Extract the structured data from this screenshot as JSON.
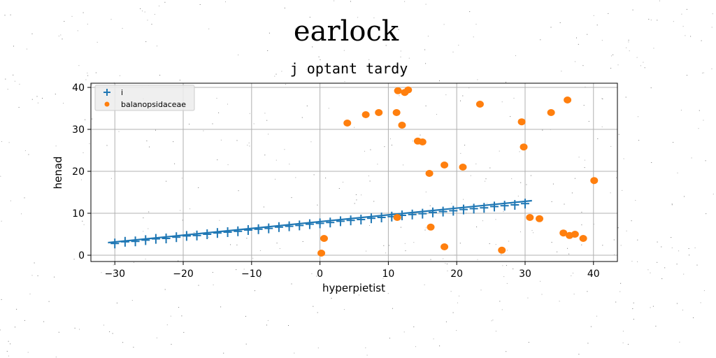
{
  "title": "earlock",
  "subtitle": "j optant tardy",
  "chart_data": {
    "type": "scatter",
    "xlabel": "hyperpietist",
    "ylabel": "henad",
    "xlim": [
      -33.5,
      43.5
    ],
    "ylim": [
      -1.5,
      41
    ],
    "xticks": [
      -30,
      -20,
      -10,
      0,
      10,
      20,
      30,
      40
    ],
    "yticks": [
      0,
      10,
      20,
      30,
      40
    ],
    "xtick_labels": [
      "−30",
      "−20",
      "−10",
      "0",
      "10",
      "20",
      "30",
      "40"
    ],
    "ytick_labels": [
      "0",
      "10",
      "20",
      "30",
      "40"
    ],
    "grid": true,
    "legend_position": "upper-left",
    "series": [
      {
        "name": "i",
        "marker": "plus",
        "color": "#1f77b4",
        "line": {
          "x": [
            -31,
            31
          ],
          "y": [
            3.0,
            13.0
          ]
        },
        "x": [
          -30,
          -28.5,
          -27,
          -25.5,
          -24,
          -22.5,
          -21,
          -19.5,
          -18,
          -16.5,
          -15,
          -13.5,
          -12,
          -10.5,
          -9,
          -7.5,
          -6,
          -4.5,
          -3,
          -1.5,
          0,
          1.5,
          3,
          4.5,
          6,
          7.5,
          9,
          10.5,
          12,
          13.5,
          15,
          16.5,
          18,
          19.5,
          21,
          22.5,
          24,
          25.5,
          27,
          28.5,
          30
        ],
        "y": [
          2.8,
          3.2,
          3.3,
          3.6,
          3.9,
          4.0,
          4.3,
          4.6,
          4.7,
          5.0,
          5.3,
          5.5,
          5.7,
          6.0,
          6.2,
          6.4,
          6.7,
          6.9,
          7.1,
          7.4,
          7.6,
          7.8,
          8.1,
          8.3,
          8.5,
          8.8,
          9.0,
          9.2,
          9.5,
          9.7,
          9.9,
          10.2,
          10.4,
          10.6,
          10.9,
          11.1,
          11.3,
          11.6,
          11.8,
          12.0,
          12.3
        ]
      },
      {
        "name": "balanopsidaceae",
        "marker": "circle",
        "color": "#ff7f0e",
        "x": [
          0.2,
          0.6,
          4,
          6.7,
          8.6,
          11.2,
          11.4,
          12,
          12.4,
          12.9,
          11.3,
          14.3,
          15,
          16,
          16.2,
          18.2,
          18.2,
          20.9,
          23.4,
          26.6,
          29.5,
          29.8,
          30.7,
          32.1,
          33.8,
          35.6,
          36.2,
          36.5,
          37.3,
          38.5,
          40.1
        ],
        "y": [
          0.5,
          4,
          31.5,
          33.5,
          34,
          34,
          39.2,
          31,
          38.8,
          39.4,
          9,
          27.2,
          27,
          19.5,
          6.7,
          2,
          21.5,
          21,
          36,
          1.2,
          31.8,
          25.8,
          9,
          8.7,
          34,
          5.3,
          37,
          4.7,
          5,
          4,
          17.8
        ]
      }
    ]
  },
  "colors": {
    "series_i": "#1f77b4",
    "series_balanopsidaceae": "#ff7f0e",
    "grid": "#b0b0b0"
  }
}
